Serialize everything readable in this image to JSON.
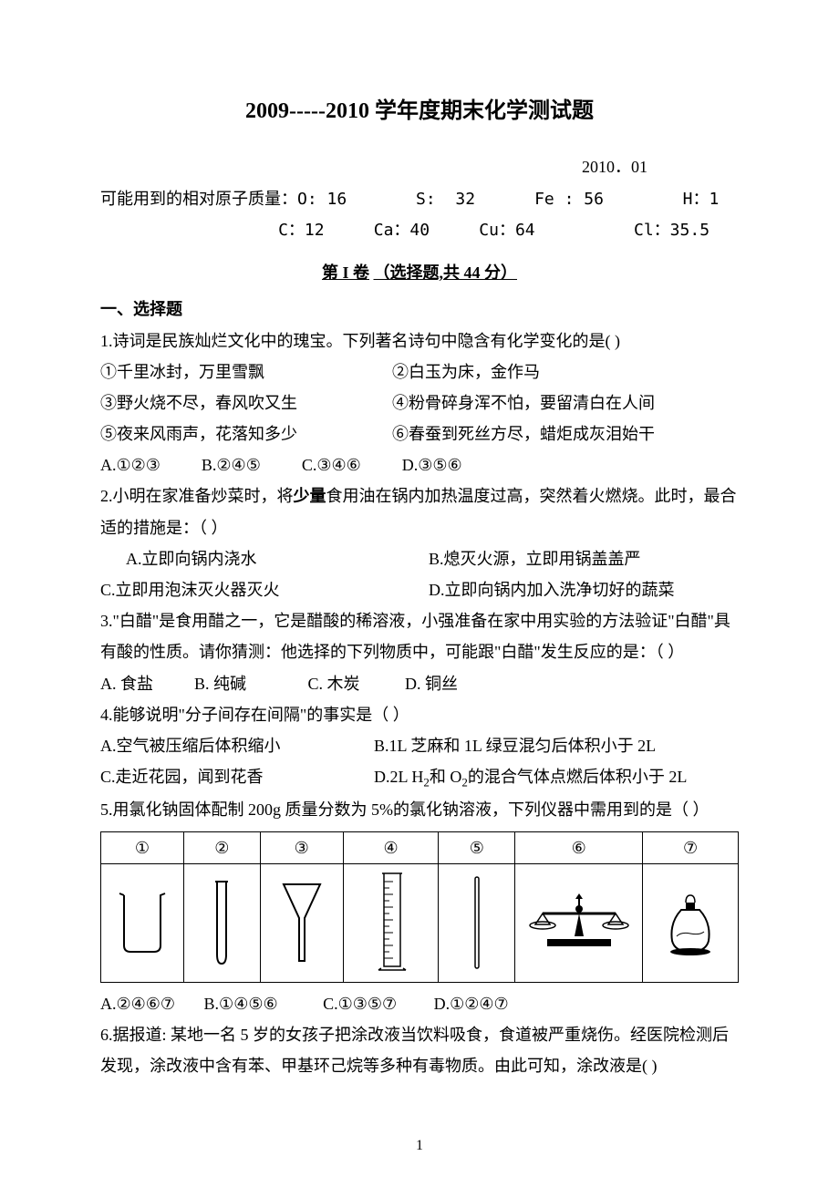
{
  "title": "2009-----2010 学年度期末化学测试题",
  "date": "2010．01",
  "atomic_line1": "可能用到的相对原子质量：O: 16       S:  32      Fe : 56        H：1",
  "atomic_line2": "                  C：12     Ca：40     Cu：64          Cl：35.5",
  "section_header_a": "第 I 卷",
  "section_header_b": "（选择题,共 44 分）",
  "sub_header": "一、选择题",
  "q1": {
    "stem": "1.诗词是民族灿烂文化中的瑰宝。下列著名诗句中隐含有化学变化的是(    )",
    "l1a": "①千里冰封，万里雪飘",
    "l1b": "②白玉为床，金作马",
    "l2a": "③野火烧不尽，春风吹又生",
    "l2b": "④粉骨碎身浑不怕，要留清白在人间",
    "l3a": "⑤夜来风雨声，花落知多少",
    "l3b": "⑥春蚕到死丝方尽，蜡炬成灰泪始干",
    "opts": "A.①②③          B.②④⑤          C.③④⑥          D.③⑤⑥"
  },
  "q2": {
    "stem_a": "2.小明在家准备炒菜时，将",
    "stem_b": "少量",
    "stem_c": "食用油在锅内加热温度过高，突然着火燃烧。此时，最合适的措施是：（     ）",
    "optA": "A.立即向锅内浇水",
    "optB": "B.熄灭火源，立即用锅盖盖严",
    "optC": "C.立即用泡沫灭火器灭火",
    "optD": "D.立即向锅内加入洗净切好的蔬菜"
  },
  "q3": {
    "stem": "3.\"白醋\"是食用醋之一，它是醋酸的稀溶液，小强准备在家中用实验的方法验证\"白醋\"具有酸的性质。请你猜测：他选择的下列物质中，可能跟\"白醋\"发生反应的是：（      ）",
    "opts": "A. 食盐          B. 纯碱               C. 木炭           D. 铜丝"
  },
  "q4": {
    "stem": "4.能够说明\"分子间存在间隔\"的事实是（     ）",
    "optA": "A.空气被压缩后体积缩小",
    "optB": "B.1L 芝麻和 1L 绿豆混匀后体积小于 2L",
    "optC": "C.走近花园，闻到花香",
    "optD_a": "D.2L H",
    "optD_b": "和 O",
    "optD_c": "的混合气体点燃后体积小于 2L"
  },
  "q5": {
    "stem": "5.用氯化钠固体配制 200g 质量分数为 5%的氯化钠溶液，下列仪器中需用到的是（       ）",
    "headers": [
      "①",
      "②",
      "③",
      "④",
      "⑤",
      "⑥",
      "⑦"
    ],
    "col_widths": [
      "13%",
      "12%",
      "13%",
      "15%",
      "12%",
      "20%",
      "15%"
    ],
    "opts": "A.②④⑥⑦       B.①④⑤⑥           C.①③⑤⑦         D.①②④⑦"
  },
  "q6": {
    "stem": "6.据报道: 某地一名 5 岁的女孩子把涂改液当饮料吸食，食道被严重烧伤。经医院检测后发现，涂改液中含有苯、甲基环己烷等多种有毒物质。由此可知，涂改液是(       )"
  },
  "page_num": "1",
  "colors": {
    "text": "#000000",
    "bg": "#ffffff",
    "border": "#000000"
  }
}
